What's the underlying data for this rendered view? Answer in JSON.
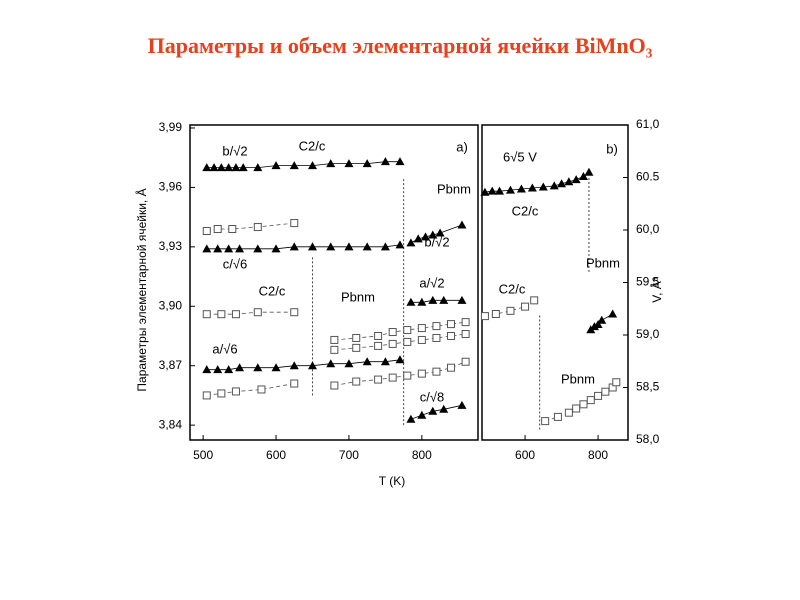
{
  "header": {
    "title": "Параметры и объем элементарной ячейки BiMnO₃"
  },
  "chart_data": [
    {
      "type": "scatter",
      "ylabel": "Параметры элементарной ячейки, Å",
      "xlabel": "T (K)",
      "xlim": [
        482,
        877
      ],
      "ylim": [
        3.8325,
        3.9915
      ],
      "xticks": [
        500,
        600,
        700,
        800
      ],
      "yticks": [
        {
          "value": 3.84,
          "label": "3,84"
        },
        {
          "value": 3.87,
          "label": "3,87"
        },
        {
          "value": 3.9,
          "label": "3,90"
        },
        {
          "value": 3.93,
          "label": "3,93"
        },
        {
          "value": 3.96,
          "label": "3,96"
        },
        {
          "value": 3.99,
          "label": "3,99"
        }
      ],
      "yaxis": "left",
      "annotations": [
        "b/√2",
        "C2/c",
        "a)",
        "Pbnm",
        "b/√2",
        "c/√6",
        "C2/c",
        "Pbnm",
        "a/√2",
        "a/√6",
        "c/√8"
      ],
      "vlines": [
        {
          "x": 650,
          "y": [
            3.855,
            3.925
          ]
        },
        {
          "x": 775,
          "y": [
            3.84,
            3.965
          ]
        }
      ],
      "series": [
        {
          "marker": "triangle",
          "line": "solid",
          "color": "#000000",
          "x": [
            505,
            515,
            525,
            535,
            545,
            555,
            575,
            600,
            625,
            650,
            675,
            700,
            725,
            750,
            770
          ],
          "values": [
            3.97,
            3.97,
            3.97,
            3.97,
            3.97,
            3.97,
            3.97,
            3.971,
            3.971,
            3.971,
            3.972,
            3.972,
            3.972,
            3.973,
            3.973
          ]
        },
        {
          "marker": "triangle",
          "line": "solid",
          "color": "#000000",
          "x": [
            785,
            795,
            805,
            815,
            825,
            855
          ],
          "values": [
            3.932,
            3.934,
            3.935,
            3.936,
            3.937,
            3.941
          ]
        },
        {
          "marker": "triangle",
          "line": "solid",
          "color": "#000000",
          "x": [
            505,
            520,
            535,
            550,
            575,
            600,
            625,
            650,
            675,
            700,
            725,
            750,
            770
          ],
          "values": [
            3.929,
            3.929,
            3.929,
            3.929,
            3.929,
            3.929,
            3.93,
            3.93,
            3.93,
            3.93,
            3.93,
            3.93,
            3.931
          ]
        },
        {
          "marker": "square",
          "line": "dashed",
          "color": "#555555",
          "x": [
            505,
            520,
            540,
            575,
            625
          ],
          "values": [
            3.938,
            3.939,
            3.939,
            3.94,
            3.942
          ]
        },
        {
          "marker": "square",
          "line": "dashed",
          "color": "#555555",
          "x": [
            505,
            525,
            545,
            575,
            625
          ],
          "values": [
            3.896,
            3.896,
            3.896,
            3.897,
            3.897
          ]
        },
        {
          "marker": "triangle",
          "line": "solid",
          "color": "#000000",
          "x": [
            505,
            520,
            535,
            550,
            575,
            600,
            625,
            650,
            675,
            700,
            725,
            750,
            770
          ],
          "values": [
            3.868,
            3.868,
            3.868,
            3.869,
            3.869,
            3.869,
            3.87,
            3.87,
            3.871,
            3.871,
            3.872,
            3.872,
            3.873
          ]
        },
        {
          "marker": "square",
          "line": "dashed",
          "color": "#555555",
          "x": [
            505,
            525,
            545,
            580,
            625
          ],
          "values": [
            3.855,
            3.856,
            3.857,
            3.858,
            3.861
          ]
        },
        {
          "marker": "triangle",
          "line": "solid",
          "color": "#000000",
          "x": [
            785,
            800,
            815,
            830,
            855
          ],
          "values": [
            3.902,
            3.902,
            3.903,
            3.903,
            3.903
          ]
        },
        {
          "marker": "triangle",
          "line": "solid",
          "color": "#000000",
          "x": [
            785,
            800,
            815,
            830,
            855
          ],
          "values": [
            3.843,
            3.845,
            3.847,
            3.848,
            3.85
          ]
        },
        {
          "marker": "square",
          "line": "dashed",
          "color": "#555555",
          "x": [
            680,
            710,
            740,
            760,
            780,
            800,
            820,
            840,
            860
          ],
          "values": [
            3.883,
            3.884,
            3.885,
            3.887,
            3.888,
            3.889,
            3.89,
            3.891,
            3.892
          ]
        },
        {
          "marker": "square",
          "line": "dashed",
          "color": "#555555",
          "x": [
            680,
            710,
            740,
            760,
            780,
            800,
            820,
            840,
            860
          ],
          "values": [
            3.878,
            3.879,
            3.88,
            3.881,
            3.882,
            3.883,
            3.884,
            3.885,
            3.886
          ]
        },
        {
          "marker": "square",
          "line": "dashed",
          "color": "#555555",
          "x": [
            680,
            710,
            740,
            760,
            780,
            800,
            820,
            840,
            860
          ],
          "values": [
            3.86,
            3.862,
            3.863,
            3.864,
            3.865,
            3.866,
            3.867,
            3.869,
            3.872
          ]
        }
      ]
    },
    {
      "type": "scatter",
      "ylabel": "V, Å³",
      "xlim": [
        482,
        882
      ],
      "ylim": [
        58,
        61
      ],
      "xticks": [
        600,
        800
      ],
      "yticks": [
        {
          "value": 58,
          "label": "58,0"
        },
        {
          "value": 58.5,
          "label": "58,5"
        },
        {
          "value": 59,
          "label": "59,0"
        },
        {
          "value": 59.5,
          "label": "59,5"
        },
        {
          "value": 60,
          "label": "60,0"
        },
        {
          "value": 60.5,
          "label": "60.5"
        },
        {
          "value": 61,
          "label": "61,0"
        }
      ],
      "yaxis": "right",
      "annotations": [
        "6√5 V",
        "b)",
        "C2/c",
        "Pbnm",
        "C2/c",
        "Pbnm"
      ],
      "vlines": [
        {
          "x": 640,
          "y": [
            58.1,
            59.2
          ]
        },
        {
          "x": 775,
          "y": [
            59.6,
            60.5
          ]
        }
      ],
      "series": [
        {
          "marker": "triangle",
          "line": "solid",
          "color": "#000000",
          "x": [
            490,
            510,
            530,
            560,
            590,
            620,
            650,
            680,
            700,
            720,
            740,
            760,
            775
          ],
          "values": [
            60.36,
            60.37,
            60.37,
            60.38,
            60.39,
            60.4,
            60.41,
            60.42,
            60.44,
            60.46,
            60.48,
            60.51,
            60.55
          ]
        },
        {
          "marker": "triangle",
          "line": "solid",
          "color": "#000000",
          "x": [
            780,
            790,
            800,
            810,
            840
          ],
          "values": [
            59.05,
            59.08,
            59.1,
            59.14,
            59.2
          ]
        },
        {
          "marker": "square",
          "line": "dashed",
          "color": "#555555",
          "x": [
            490,
            520,
            560,
            600,
            625
          ],
          "values": [
            59.18,
            59.2,
            59.23,
            59.27,
            59.33
          ]
        },
        {
          "marker": "square",
          "line": "dashed",
          "color": "#555555",
          "x": [
            655,
            690,
            720,
            740,
            760,
            780,
            800,
            820,
            840,
            850
          ],
          "values": [
            58.18,
            58.22,
            58.26,
            58.3,
            58.34,
            58.38,
            58.42,
            58.46,
            58.5,
            58.55
          ]
        }
      ]
    }
  ]
}
